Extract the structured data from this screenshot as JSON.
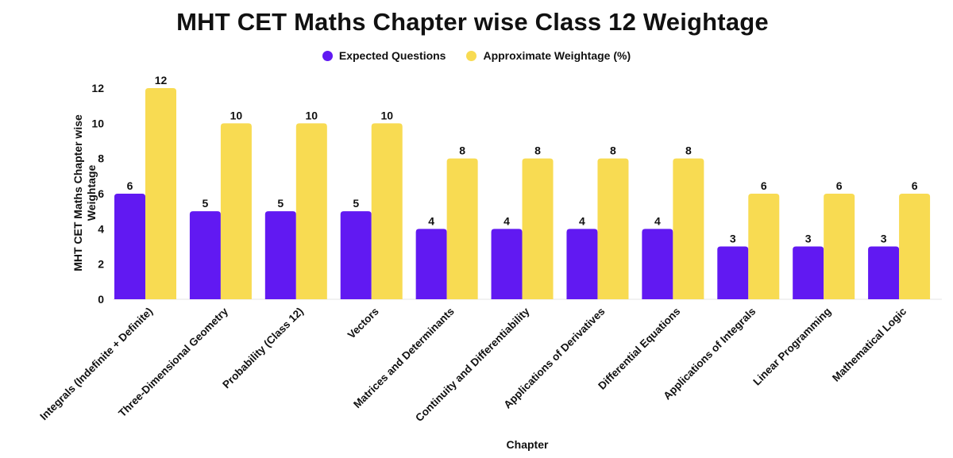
{
  "chart_data": {
    "type": "bar",
    "title": "MHT CET Maths Chapter wise Class 12 Weightage",
    "xlabel": "Chapter",
    "ylabel": "MHT CET Maths Chapter wise Weightage",
    "ylim": [
      0,
      12
    ],
    "yticks": [
      0,
      2,
      4,
      6,
      8,
      10,
      12
    ],
    "grid": false,
    "legend_position": "top-center",
    "categories": [
      "Integrals (Indefinite + Definite)",
      "Three-Dimensional Geometry",
      "Probability (Class 12)",
      "Vectors",
      "Matrices and Determinants",
      "Continuity and Differentiability",
      "Applications of Derivatives",
      "Differential Equations",
      "Applications of Integrals",
      "Linear Programming",
      "Mathematical Logic"
    ],
    "series": [
      {
        "name": "Expected Questions",
        "color": "#6119F2",
        "values": [
          6,
          5,
          5,
          5,
          4,
          4,
          4,
          4,
          3,
          3,
          3
        ]
      },
      {
        "name": "Approximate Weightage (%)",
        "color": "#F8DB52",
        "values": [
          12,
          10,
          10,
          10,
          8,
          8,
          8,
          8,
          6,
          6,
          6
        ]
      }
    ]
  }
}
